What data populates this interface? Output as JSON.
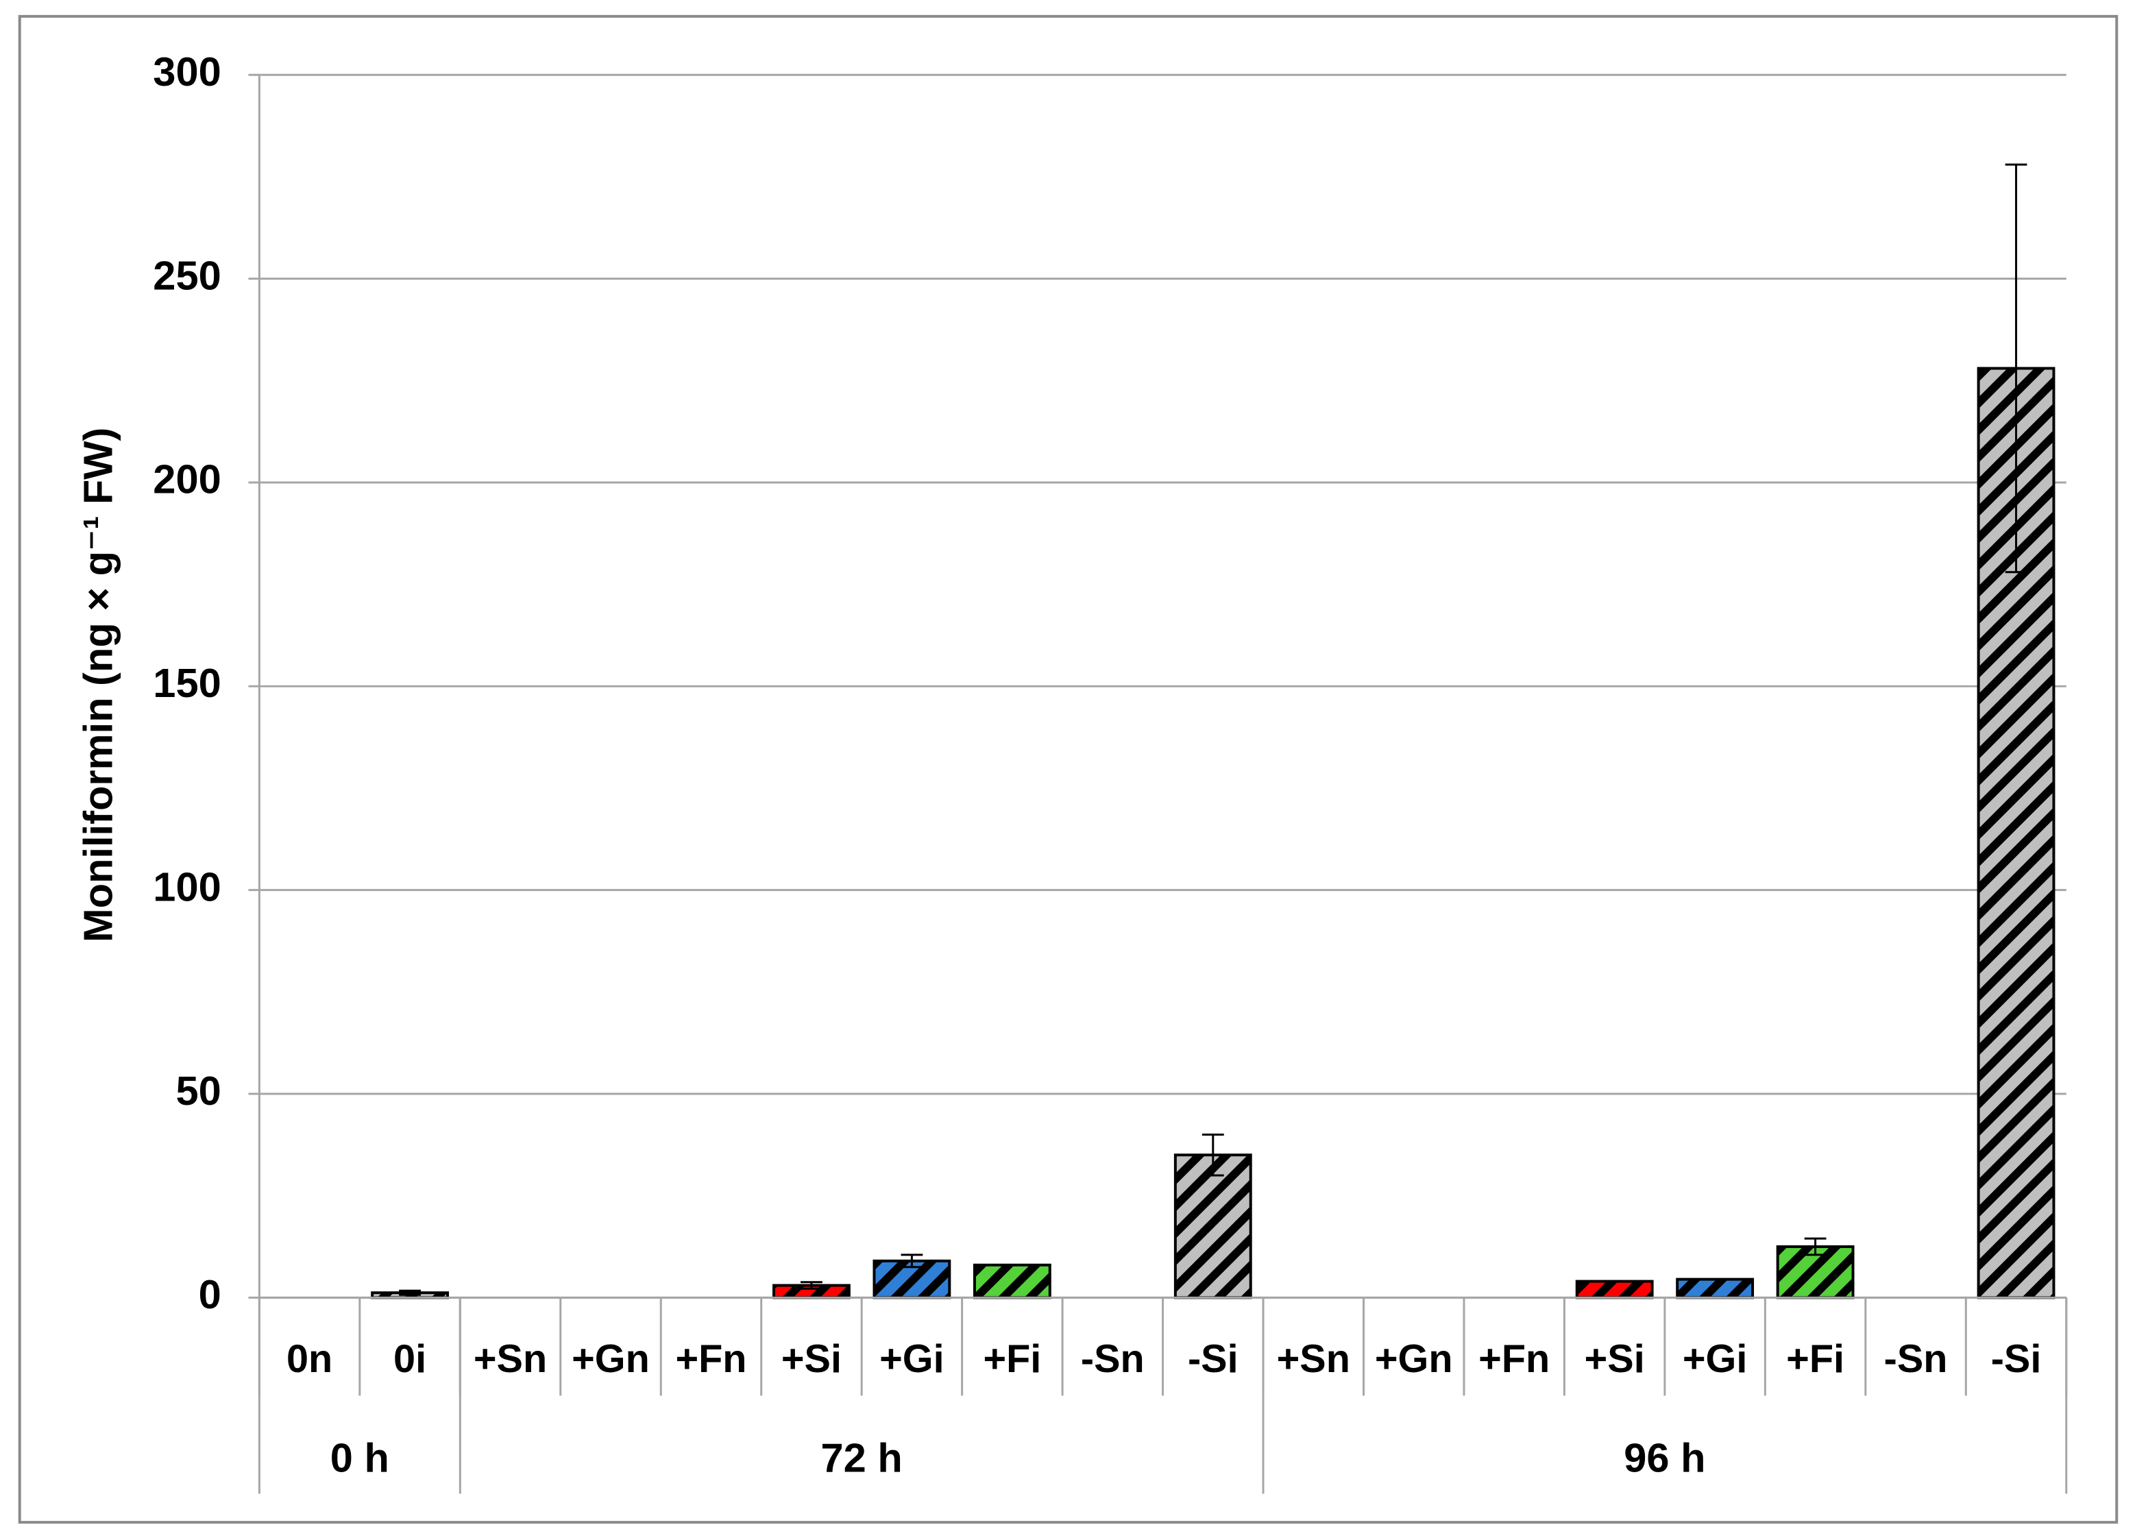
{
  "chart_data": {
    "type": "bar",
    "ylabel": "Moniliformin (ng × g⁻¹ FW)",
    "categories": [
      "0n",
      "0i",
      "+Sn",
      "+Gn",
      "+Fn",
      "+Si",
      "+Gi",
      "+Fi",
      "-Sn",
      "-Si",
      "+Sn",
      "+Gn",
      "+Fn",
      "+Si",
      "+Gi",
      "+Fi",
      "-Sn",
      "-Si"
    ],
    "values": [
      0,
      1.2,
      0,
      0,
      0,
      3,
      9,
      8,
      0,
      35,
      0,
      0,
      0,
      4,
      4.5,
      12.5,
      0,
      228
    ],
    "errors": [
      0,
      0.5,
      0,
      0,
      0,
      0.8,
      1.5,
      0,
      0,
      5,
      0,
      0,
      0,
      0,
      0,
      2,
      0,
      50
    ],
    "colors": [
      "#bfbfbf",
      "#bfbfbf",
      "#ff0000",
      "#2f7fd6",
      "#55d13a",
      "#ff0000",
      "#2f7fd6",
      "#55d13a",
      "#bfbfbf",
      "#bfbfbf",
      "#ff0000",
      "#2f7fd6",
      "#55d13a",
      "#ff0000",
      "#2f7fd6",
      "#55d13a",
      "#bfbfbf",
      "#bfbfbf"
    ],
    "groups": [
      {
        "label": "0 h",
        "span": 2
      },
      {
        "label": "72 h",
        "span": 8
      },
      {
        "label": "96 h",
        "span": 8
      }
    ],
    "ylim": [
      0,
      300
    ],
    "yticks": [
      0,
      50,
      100,
      150,
      200,
      250,
      300
    ],
    "grid": true,
    "hatch": true
  }
}
